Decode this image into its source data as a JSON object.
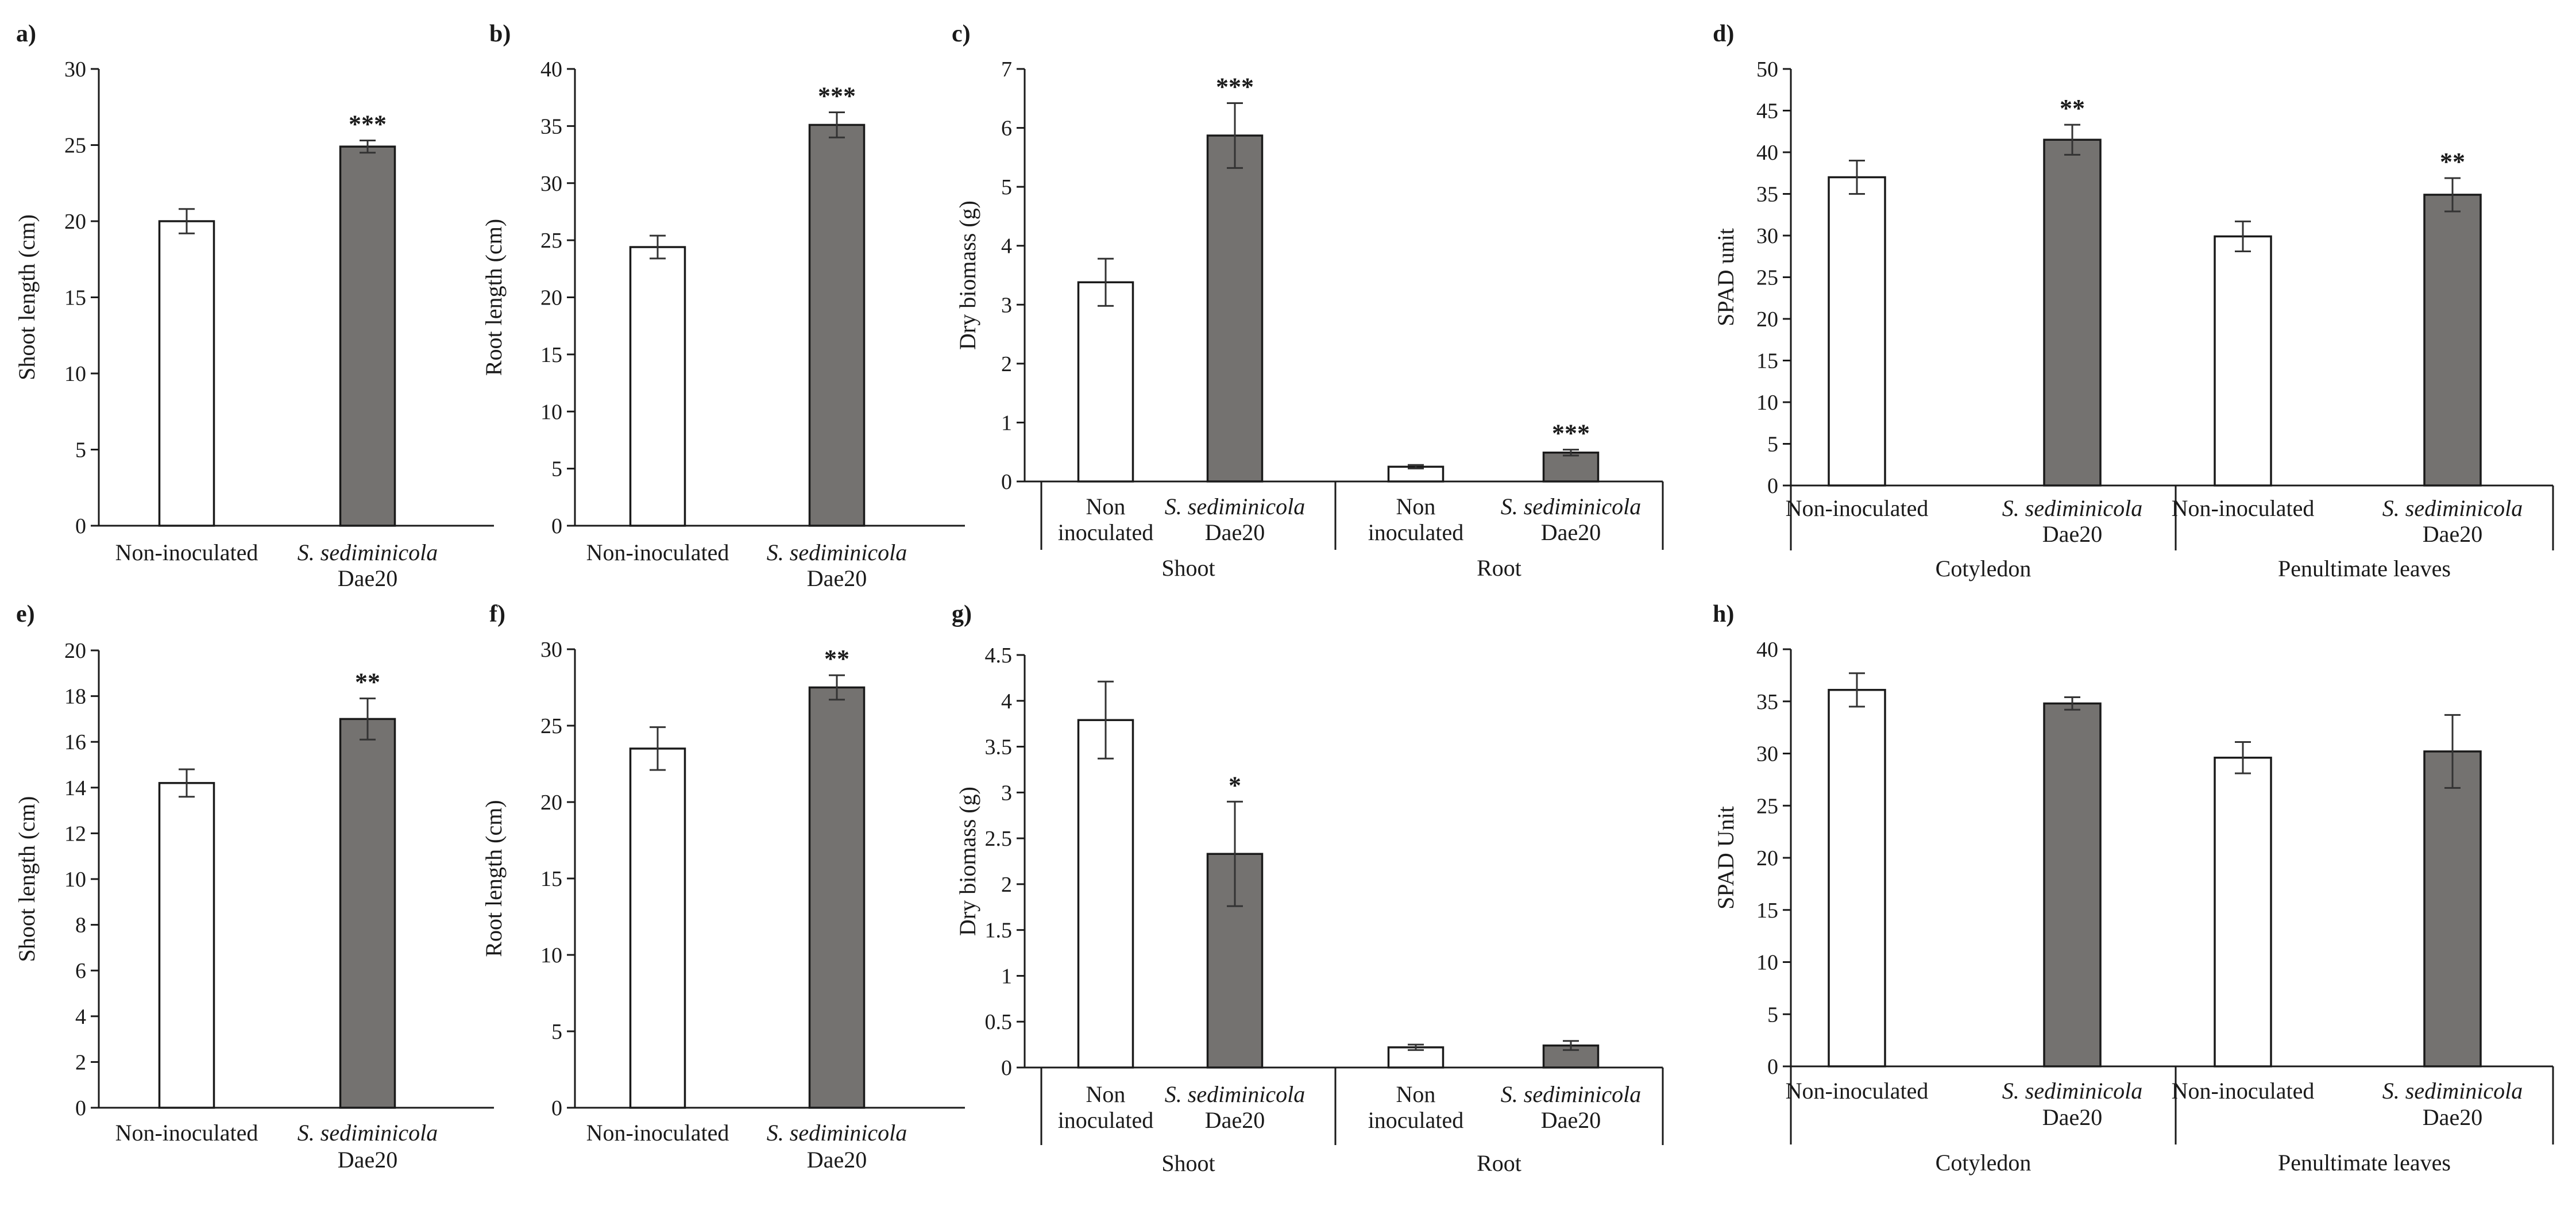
{
  "colors": {
    "control": "#ffffff",
    "treated": "#747270",
    "axis": "#1a1a1a",
    "errorbar": "#333333"
  },
  "chart_data": [
    {
      "id": "a",
      "panel_label": "a)",
      "type": "bar",
      "ylabel": "Shoot length (cm)",
      "ylim": [
        0,
        30
      ],
      "yticks": [
        0,
        5,
        10,
        15,
        20,
        25,
        30
      ],
      "ytick_labels": [
        "0",
        "5",
        "10",
        "15",
        "20",
        "25",
        "30"
      ],
      "groups": [],
      "bars": [
        {
          "label_lines": [
            {
              "text": "Non-inoculated",
              "italic": false
            }
          ],
          "value": 20.0,
          "error": 0.8,
          "treated": false,
          "sig": ""
        },
        {
          "label_lines": [
            {
              "text": "S. sediminicola",
              "italic": true
            },
            {
              "text": "Dae20",
              "italic": false
            }
          ],
          "value": 24.9,
          "error": 0.4,
          "treated": true,
          "sig": "***"
        }
      ]
    },
    {
      "id": "b",
      "panel_label": "b)",
      "type": "bar",
      "ylabel": "Root length (cm)",
      "ylim": [
        0,
        40
      ],
      "yticks": [
        0,
        5,
        10,
        15,
        20,
        25,
        30,
        35,
        40
      ],
      "ytick_labels": [
        "0",
        "5",
        "10",
        "15",
        "20",
        "25",
        "30",
        "35",
        "40"
      ],
      "groups": [],
      "bars": [
        {
          "label_lines": [
            {
              "text": "Non-inoculated",
              "italic": false
            }
          ],
          "value": 24.4,
          "error": 1.0,
          "treated": false,
          "sig": ""
        },
        {
          "label_lines": [
            {
              "text": "S. sediminicola",
              "italic": true
            },
            {
              "text": "Dae20",
              "italic": false
            }
          ],
          "value": 35.1,
          "error": 1.1,
          "treated": true,
          "sig": "***"
        }
      ]
    },
    {
      "id": "c",
      "panel_label": "c)",
      "type": "bar",
      "ylabel": "Dry biomass (g)",
      "ylim": [
        0,
        7
      ],
      "yticks": [
        0,
        1,
        2,
        3,
        4,
        5,
        6,
        7
      ],
      "ytick_labels": [
        "0",
        "1",
        "2",
        "3",
        "4",
        "5",
        "6",
        "7"
      ],
      "groups": [
        "Shoot",
        "Root"
      ],
      "bars": [
        {
          "label_lines": [
            {
              "text": "Non",
              "italic": false
            },
            {
              "text": "inoculated",
              "italic": false
            }
          ],
          "value": 3.38,
          "error": 0.4,
          "treated": false,
          "sig": ""
        },
        {
          "label_lines": [
            {
              "text": "S. sediminicola",
              "italic": true
            },
            {
              "text": "Dae20",
              "italic": false
            }
          ],
          "value": 5.87,
          "error": 0.55,
          "treated": true,
          "sig": "***"
        },
        {
          "label_lines": [
            {
              "text": "Non",
              "italic": false
            },
            {
              "text": "inoculated",
              "italic": false
            }
          ],
          "value": 0.25,
          "error": 0.03,
          "treated": false,
          "sig": ""
        },
        {
          "label_lines": [
            {
              "text": "S. sediminicola",
              "italic": true
            },
            {
              "text": "Dae20",
              "italic": false
            }
          ],
          "value": 0.49,
          "error": 0.05,
          "treated": true,
          "sig": "***"
        }
      ]
    },
    {
      "id": "d",
      "panel_label": "d)",
      "type": "bar",
      "ylabel": "SPAD unit",
      "ylim": [
        0,
        50
      ],
      "yticks": [
        0,
        5,
        10,
        15,
        20,
        25,
        30,
        35,
        40,
        45,
        50
      ],
      "ytick_labels": [
        "0",
        "5",
        "10",
        "15",
        "20",
        "25",
        "30",
        "35",
        "40",
        "45",
        "50"
      ],
      "groups": [
        "Cotyledon",
        "Penultimate leaves"
      ],
      "bars": [
        {
          "label_lines": [
            {
              "text": "Non-inoculated",
              "italic": false
            }
          ],
          "value": 37.0,
          "error": 2.0,
          "treated": false,
          "sig": ""
        },
        {
          "label_lines": [
            {
              "text": "S. sediminicola",
              "italic": true
            },
            {
              "text": "Dae20",
              "italic": false
            }
          ],
          "value": 41.5,
          "error": 1.8,
          "treated": true,
          "sig": "**"
        },
        {
          "label_lines": [
            {
              "text": "Non-inoculated",
              "italic": false
            }
          ],
          "value": 29.9,
          "error": 1.8,
          "treated": false,
          "sig": ""
        },
        {
          "label_lines": [
            {
              "text": "S. sediminicola",
              "italic": true
            },
            {
              "text": "Dae20",
              "italic": false
            }
          ],
          "value": 34.9,
          "error": 2.0,
          "treated": true,
          "sig": "**"
        }
      ]
    },
    {
      "id": "e",
      "panel_label": "e)",
      "type": "bar",
      "ylabel": "Shoot length (cm)",
      "ylim": [
        0,
        20
      ],
      "yticks": [
        0,
        2,
        4,
        6,
        8,
        10,
        12,
        14,
        16,
        18,
        20
      ],
      "ytick_labels": [
        "0",
        "2",
        "4",
        "6",
        "8",
        "10",
        "12",
        "14",
        "16",
        "18",
        "20"
      ],
      "groups": [],
      "bars": [
        {
          "label_lines": [
            {
              "text": "Non-inoculated",
              "italic": false
            }
          ],
          "value": 14.2,
          "error": 0.6,
          "treated": false,
          "sig": ""
        },
        {
          "label_lines": [
            {
              "text": "S. sediminicola",
              "italic": true
            },
            {
              "text": "Dae20",
              "italic": false
            }
          ],
          "value": 17.0,
          "error": 0.9,
          "treated": true,
          "sig": "**"
        }
      ]
    },
    {
      "id": "f",
      "panel_label": "f)",
      "type": "bar",
      "ylabel": "Root length (cm)",
      "ylim": [
        0,
        30
      ],
      "yticks": [
        0,
        5,
        10,
        15,
        20,
        25,
        30
      ],
      "ytick_labels": [
        "0",
        "5",
        "10",
        "15",
        "20",
        "25",
        "30"
      ],
      "groups": [],
      "bars": [
        {
          "label_lines": [
            {
              "text": "Non-inoculated",
              "italic": false
            }
          ],
          "value": 23.5,
          "error": 1.4,
          "treated": false,
          "sig": ""
        },
        {
          "label_lines": [
            {
              "text": "S. sediminicola",
              "italic": true
            },
            {
              "text": "Dae20",
              "italic": false
            }
          ],
          "value": 27.5,
          "error": 0.8,
          "treated": true,
          "sig": "**"
        }
      ]
    },
    {
      "id": "g",
      "panel_label": "g)",
      "type": "bar",
      "ylabel": "Dry biomass (g)",
      "ylim": [
        0,
        4.5
      ],
      "yticks": [
        0,
        0.5,
        1,
        1.5,
        2,
        2.5,
        3,
        3.5,
        4,
        4.5
      ],
      "ytick_labels": [
        "0",
        "0.5",
        "1",
        "1.5",
        "2",
        "2.5",
        "3",
        "3.5",
        "4",
        "4.5"
      ],
      "groups": [
        "Shoot",
        "Root"
      ],
      "bars": [
        {
          "label_lines": [
            {
              "text": "Non",
              "italic": false
            },
            {
              "text": "inoculated",
              "italic": false
            }
          ],
          "value": 3.79,
          "error": 0.42,
          "treated": false,
          "sig": ""
        },
        {
          "label_lines": [
            {
              "text": "S. sediminicola",
              "italic": true
            },
            {
              "text": "Dae20",
              "italic": false
            }
          ],
          "value": 2.33,
          "error": 0.57,
          "treated": true,
          "sig": "*"
        },
        {
          "label_lines": [
            {
              "text": "Non",
              "italic": false
            },
            {
              "text": "inoculated",
              "italic": false
            }
          ],
          "value": 0.22,
          "error": 0.03,
          "treated": false,
          "sig": ""
        },
        {
          "label_lines": [
            {
              "text": "S. sediminicola",
              "italic": true
            },
            {
              "text": "Dae20",
              "italic": false
            }
          ],
          "value": 0.24,
          "error": 0.05,
          "treated": true,
          "sig": ""
        }
      ]
    },
    {
      "id": "h",
      "panel_label": "h)",
      "type": "bar",
      "ylabel": "SPAD Unit",
      "ylim": [
        0,
        40
      ],
      "yticks": [
        0,
        5,
        10,
        15,
        20,
        25,
        30,
        35,
        40
      ],
      "ytick_labels": [
        "0",
        "5",
        "10",
        "15",
        "20",
        "25",
        "30",
        "35",
        "40"
      ],
      "groups": [
        "Cotyledon",
        "Penultimate leaves"
      ],
      "bars": [
        {
          "label_lines": [
            {
              "text": "Non-inoculated",
              "italic": false
            }
          ],
          "value": 36.1,
          "error": 1.6,
          "treated": false,
          "sig": ""
        },
        {
          "label_lines": [
            {
              "text": "S. sediminicola",
              "italic": true
            },
            {
              "text": "Dae20",
              "italic": false
            }
          ],
          "value": 34.8,
          "error": 0.6,
          "treated": true,
          "sig": ""
        },
        {
          "label_lines": [
            {
              "text": "Non-inoculated",
              "italic": false
            }
          ],
          "value": 29.6,
          "error": 1.5,
          "treated": false,
          "sig": ""
        },
        {
          "label_lines": [
            {
              "text": "S. sediminicola",
              "italic": true
            },
            {
              "text": "Dae20",
              "italic": false
            }
          ],
          "value": 30.2,
          "error": 3.5,
          "treated": true,
          "sig": ""
        }
      ]
    }
  ]
}
